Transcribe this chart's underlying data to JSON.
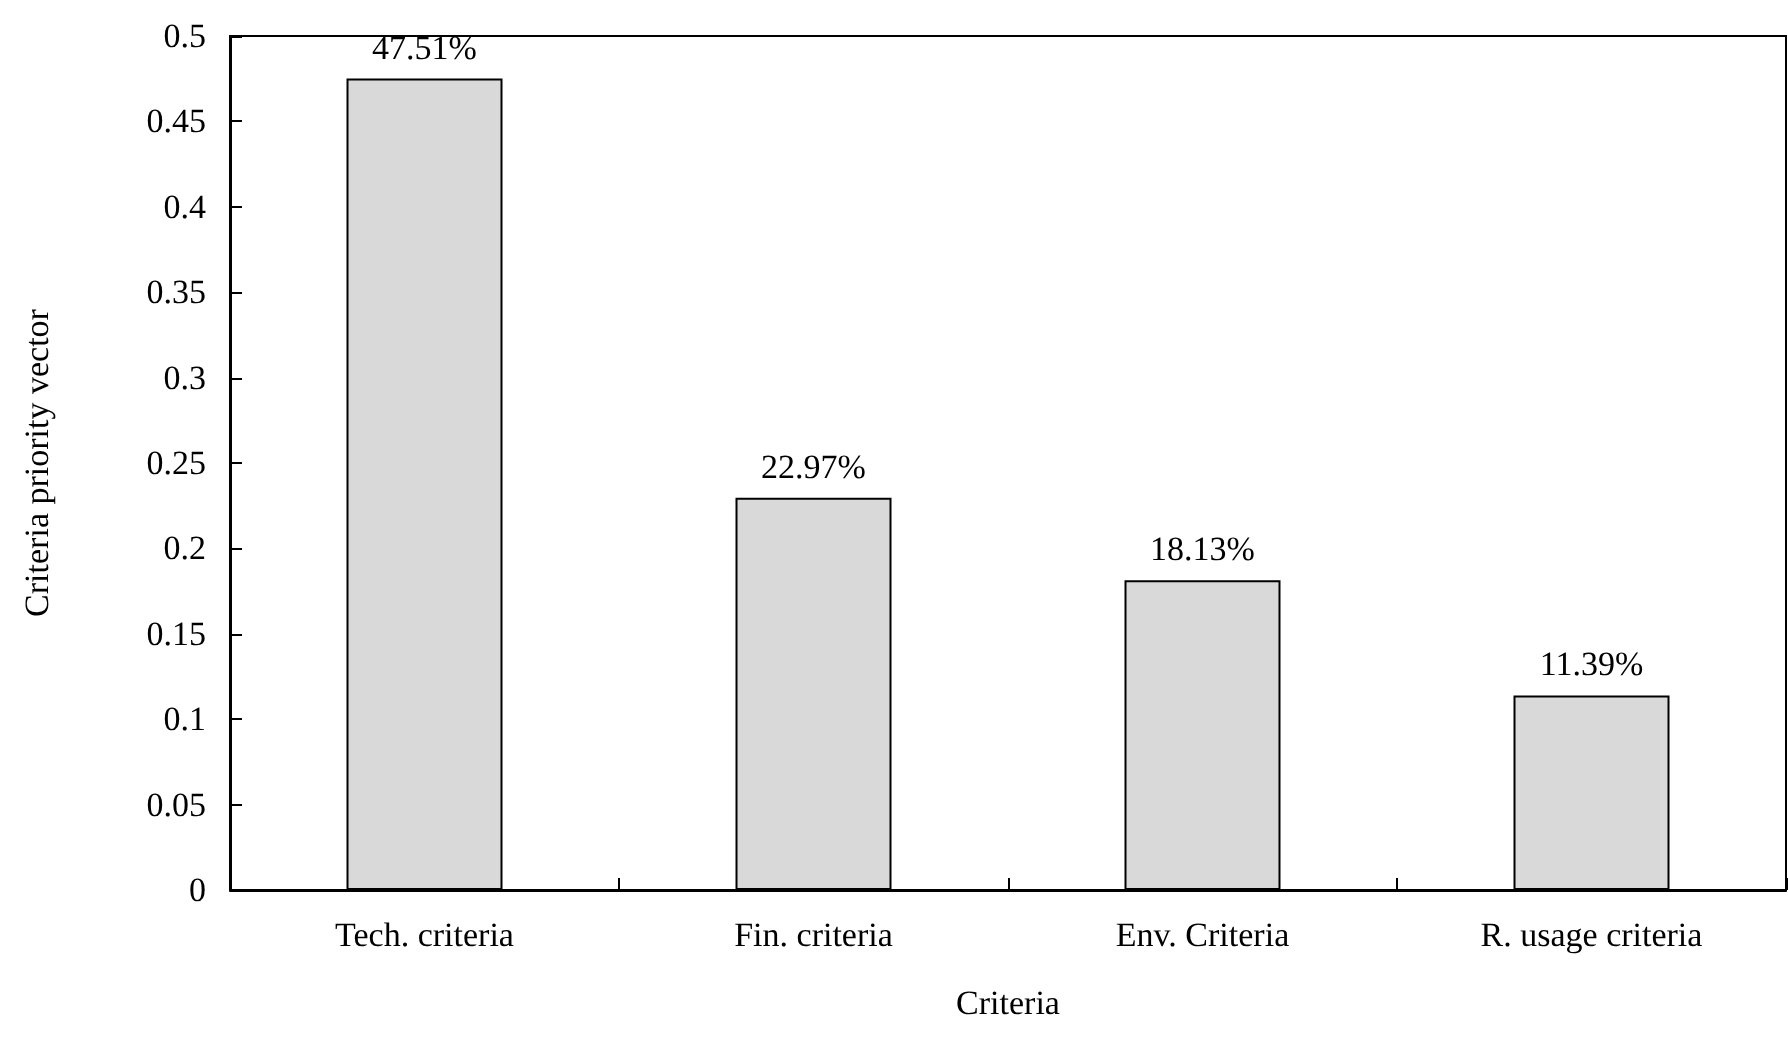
{
  "chart_data": {
    "type": "bar",
    "xlabel": "Criteria",
    "ylabel": "Criteria priority vector",
    "categories": [
      "Tech. criteria",
      "Fin. criteria",
      "Env. Criteria",
      "R. usage criteria"
    ],
    "values": [
      0.4751,
      0.2297,
      0.1813,
      0.1139
    ],
    "value_labels": [
      "47.51%",
      "22.97%",
      "18.13%",
      "11.39%"
    ],
    "color": "#d9d9d9",
    "ylim": [
      0,
      0.5
    ],
    "yticks": [
      0,
      0.05,
      0.1,
      0.15,
      0.2,
      0.25,
      0.3,
      0.35,
      0.4,
      0.45,
      0.5
    ],
    "grid": false
  }
}
